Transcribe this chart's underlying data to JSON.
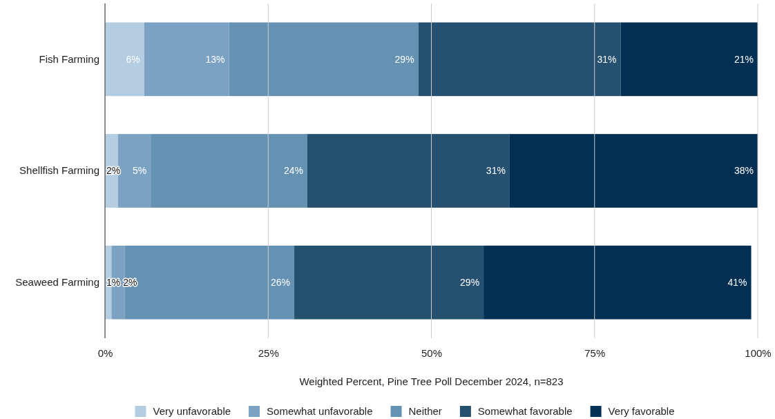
{
  "chart_data": {
    "type": "bar",
    "orientation": "horizontal",
    "stacked": true,
    "xlabel": "Weighted Percent, Pine Tree Poll December 2024, n=823",
    "categories": [
      "Fish Farming",
      "Shellfish Farming",
      "Seaweed Farming"
    ],
    "series": [
      {
        "name": "Very unfavorable",
        "color": "#b4cde0",
        "values": [
          6,
          2,
          1
        ],
        "value_labels": [
          "6%",
          "2%",
          "1%"
        ]
      },
      {
        "name": "Somewhat unfavorable",
        "color": "#7ca2c3",
        "values": [
          13,
          5,
          2
        ],
        "value_labels": [
          "13%",
          "5%",
          "2%"
        ]
      },
      {
        "name": "Neither",
        "color": "#6592b2",
        "values": [
          29,
          24,
          26
        ],
        "value_labels": [
          "29%",
          "24%",
          "26%"
        ]
      },
      {
        "name": "Somewhat favorable",
        "color": "#26506f",
        "values": [
          31,
          31,
          29
        ],
        "value_labels": [
          "31%",
          "31%",
          "29%"
        ]
      },
      {
        "name": "Very favorable",
        "color": "#022f52",
        "values": [
          21,
          38,
          41
        ],
        "value_labels": [
          "21%",
          "38%",
          "41%"
        ]
      }
    ],
    "xlim": [
      0,
      100
    ],
    "xticks": [
      {
        "value": 0,
        "label": "0%"
      },
      {
        "value": 25,
        "label": "25%"
      },
      {
        "value": 50,
        "label": "50%"
      },
      {
        "value": 75,
        "label": "75%"
      },
      {
        "value": 100,
        "label": "100%"
      }
    ],
    "grid": "x",
    "legend": "bottom"
  }
}
